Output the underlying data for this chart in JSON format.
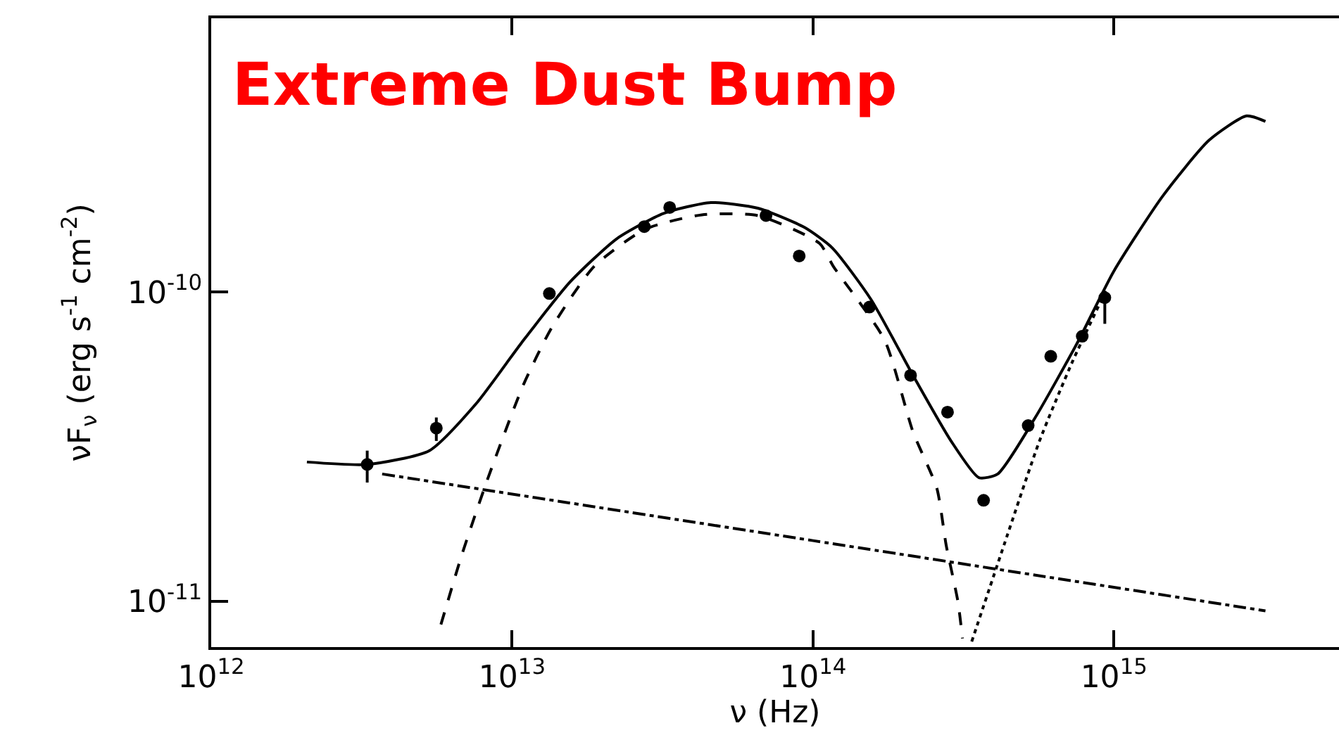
{
  "chart_data": {
    "type": "scatter",
    "title": "Extreme Dust Bump",
    "xlabel": "ν (Hz)",
    "ylabel": "νF$_{ν}$ (erg s$^{-1}$ cm$^{-2}$)",
    "log": "xy",
    "grid": false,
    "xlim": [
      1000000000000.0,
      5600000000000000.0
    ],
    "xticks": [
      {
        "value": 1000000000000.0,
        "label": "10$^{12}$"
      },
      {
        "value": 10000000000000.0,
        "label": "10$^{13}$"
      },
      {
        "value": 100000000000000.0,
        "label": "10$^{14}$"
      },
      {
        "value": 1000000000000000.0,
        "label": "10$^{15}$"
      }
    ],
    "ylim": [
      7.1e-12,
      7.7e-10
    ],
    "yticks": [
      {
        "value": 1e-11,
        "label": "10$^{-11}$"
      },
      {
        "value": 1e-10,
        "label": "10$^{-10}$"
      }
    ],
    "series": [
      {
        "marker": "circle",
        "color": "#000000",
        "x": [
          3300000000000.0,
          5600000000000.0,
          13300000000000.0,
          27500000000000.0,
          33400000000000.0,
          69800000000000.0,
          90000000000000.0,
          154000000000000.0,
          211000000000000.0,
          280000000000000.0,
          369000000000000.0,
          519000000000000.0,
          617000000000000.0,
          785000000000000.0,
          933000000000000.0
        ],
        "values": [
          2.77e-11,
          3.63e-11,
          9.9e-11,
          1.63e-10,
          1.88e-10,
          1.77e-10,
          1.31e-10,
          8.95e-11,
          5.38e-11,
          4.09e-11,
          2.12e-11,
          3.7e-11,
          6.2e-11,
          7.2e-11,
          9.6e-11
        ],
        "errors": [
          [
            2.42e-11,
            3.07e-11
          ],
          [
            3.3e-11,
            3.93e-11
          ],
          null,
          null,
          null,
          null,
          null,
          null,
          null,
          null,
          null,
          null,
          null,
          null,
          [
            7.9e-11,
            1.01e-10
          ]
        ]
      },
      {
        "type": "line",
        "line_style": "solid",
        "color": "#000000",
        "x": [
          2080000000000.0,
          3310000000000.0,
          5310000000000.0,
          7600000000000.0,
          10800000000000.0,
          15600000000000.0,
          22300000000000.0,
          31900000000000.0,
          45800000000000.0,
          65600000000000.0,
          93700000000000.0,
          116000000000000.0,
          156000000000000.0,
          215000000000000.0,
          287000000000000.0,
          356000000000000.0,
          411000000000000.0,
          548000000000000.0,
          757000000000000.0,
          1000000000000000.0,
          1450000000000000.0,
          2070000000000000.0,
          2760000000000000.0,
          3190000000000000.0
        ],
        "values": [
          2.82e-11,
          2.77e-11,
          3.07e-11,
          4.36e-11,
          6.9e-11,
          1.08e-10,
          1.49e-10,
          1.8e-10,
          1.95e-10,
          1.87e-10,
          1.62e-10,
          1.39e-10,
          9.46e-11,
          5.38e-11,
          3.31e-11,
          2.51e-11,
          2.58e-11,
          3.93e-11,
          6.87e-11,
          1.17e-10,
          2.04e-10,
          3.1e-10,
          3.72e-10,
          3.57e-10
        ]
      },
      {
        "type": "line",
        "line_style": "dashed",
        "color": "#000000",
        "x": [
          5800000000000.0,
          6820000000000.0,
          8300000000000.0,
          10900000000000.0,
          13500000000000.0,
          18700000000000.0,
          27700000000000.0,
          42700000000000.0,
          65600000000000.0,
          105000000000000.0,
          117000000000000.0,
          173000000000000.0,
          215000000000000.0,
          258000000000000.0,
          277000000000000.0,
          303000000000000.0,
          314000000000000.0
        ],
        "values": [
          8.4e-12,
          1.42e-11,
          2.49e-11,
          5.01e-11,
          7.64e-11,
          1.21e-10,
          1.6e-10,
          1.78e-10,
          1.77e-10,
          1.44e-10,
          1.21e-10,
          7e-11,
          3.53e-11,
          2.32e-11,
          1.52e-11,
          1e-11,
          7.57e-12
        ]
      },
      {
        "type": "line",
        "line_style": "dashdot",
        "color": "#000000",
        "x": [
          3700000000000.0,
          100000000000000.0,
          3190000000000000.0
        ],
        "values": [
          2.58e-11,
          1.57e-11,
          9.3e-12
        ]
      },
      {
        "type": "line",
        "line_style": "dotted",
        "color": "#000000",
        "x": [
          337000000000000.0,
          442000000000000.0,
          566000000000000.0,
          729000000000000.0,
          940000000000000.0
        ],
        "values": [
          7.4e-12,
          1.63e-11,
          3.3e-11,
          5.97e-11,
          1.01e-10
        ]
      }
    ]
  }
}
